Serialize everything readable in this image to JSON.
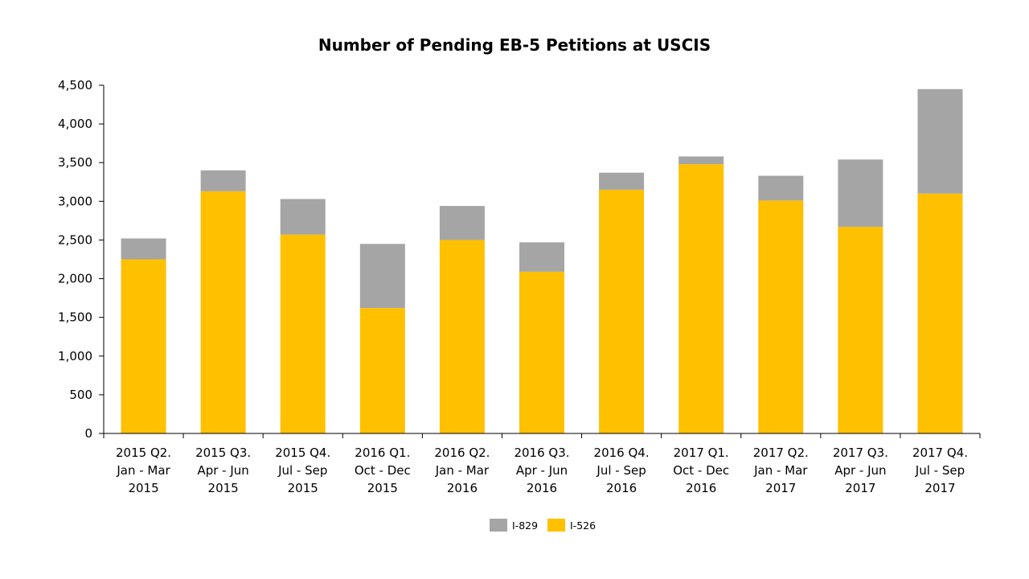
{
  "chart_data": {
    "type": "bar",
    "stacked": true,
    "title": "Number of Pending EB-5 Petitions at USCIS",
    "xlabel": "",
    "ylabel": "",
    "ylim": [
      0,
      4500
    ],
    "y_ticks": [
      0,
      500,
      1000,
      1500,
      2000,
      2500,
      3000,
      3500,
      4000,
      4500
    ],
    "y_tick_labels": [
      "0",
      "500",
      "1,000",
      "1,500",
      "2,000",
      "2,500",
      "3,000",
      "3,500",
      "4,000",
      "4,500"
    ],
    "grid": false,
    "legend_position": "bottom-center",
    "categories": [
      [
        "2015 Q2.",
        "Jan - Mar",
        "2015"
      ],
      [
        "2015 Q3.",
        "Apr - Jun",
        "2015"
      ],
      [
        "2015 Q4.",
        "Jul - Sep",
        "2015"
      ],
      [
        "2016 Q1.",
        "Oct - Dec",
        "2015"
      ],
      [
        "2016 Q2.",
        "Jan - Mar",
        "2016"
      ],
      [
        "2016 Q3.",
        "Apr - Jun",
        "2016"
      ],
      [
        "2016 Q4.",
        "Jul - Sep",
        "2016"
      ],
      [
        "2017 Q1.",
        "Oct - Dec",
        "2016"
      ],
      [
        "2017 Q2.",
        "Jan - Mar",
        "2017"
      ],
      [
        "2017 Q3.",
        "Apr - Jun",
        "2017"
      ],
      [
        "2017 Q4.",
        "Jul - Sep",
        "2017"
      ]
    ],
    "series": [
      {
        "name": "I-526",
        "color": "#FFC000",
        "values": [
          2250,
          3130,
          2570,
          1620,
          2500,
          2090,
          3150,
          3480,
          3010,
          2670,
          3100
        ]
      },
      {
        "name": "I-829",
        "color": "#A5A5A5",
        "values": [
          270,
          270,
          460,
          830,
          440,
          380,
          220,
          100,
          320,
          870,
          1350
        ]
      }
    ],
    "legend_order": [
      "I-829",
      "I-526"
    ]
  }
}
